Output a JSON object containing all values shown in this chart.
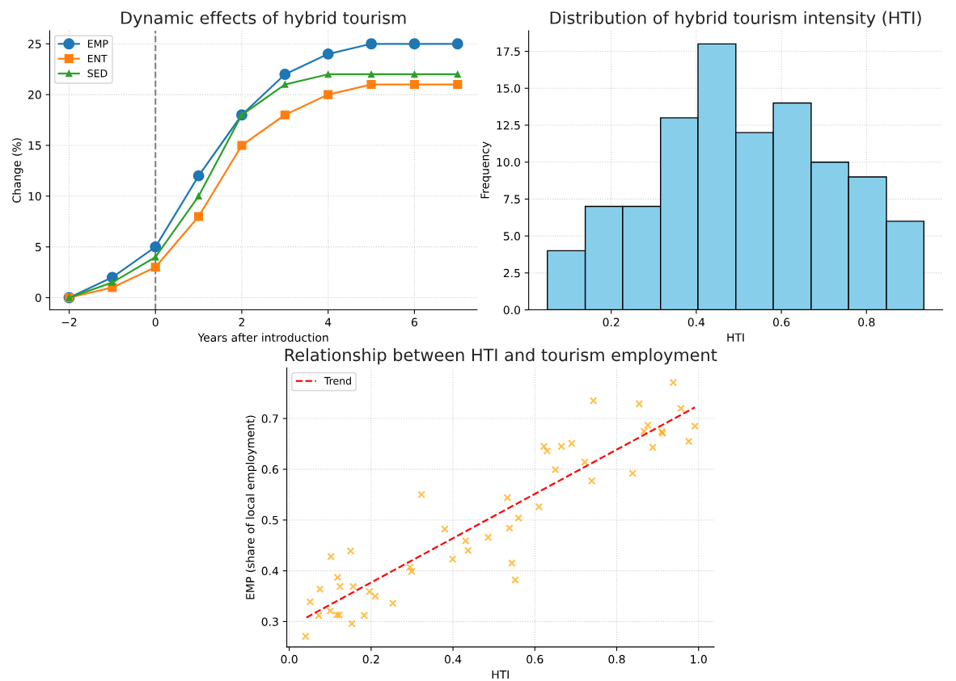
{
  "chart_data": [
    {
      "type": "line",
      "title": "Dynamic effects of hybrid tourism",
      "xlabel": "Years after introduction",
      "ylabel": "Change (%)",
      "x": [
        -2,
        -1,
        0,
        1,
        2,
        3,
        4,
        5,
        6,
        7
      ],
      "series": [
        {
          "name": "EMP",
          "color": "#1f77b4",
          "marker": "circle",
          "values": [
            0,
            2,
            5,
            12,
            18,
            22,
            24,
            25,
            25,
            25
          ]
        },
        {
          "name": "ENT",
          "color": "#ff7f0e",
          "marker": "square",
          "values": [
            0,
            1,
            3,
            8,
            15,
            18,
            20,
            21,
            21,
            21
          ]
        },
        {
          "name": "SED",
          "color": "#2ca02c",
          "marker": "triangle",
          "values": [
            0,
            1.5,
            4,
            10,
            18,
            21,
            22,
            22,
            22,
            22
          ]
        }
      ],
      "xlim": [
        -2.45,
        7.45
      ],
      "xticks": [
        {
          "value": -2,
          "label": "−2"
        },
        0,
        2,
        4,
        6
      ],
      "ylim": [
        -1.2,
        26.3
      ],
      "yticks": [
        0,
        5,
        10,
        15,
        20,
        25
      ],
      "ref_lines": [
        {
          "axis": "x",
          "value": 0,
          "color": "#808080",
          "line_style": "dashed"
        }
      ],
      "grid": true,
      "legend": "top left",
      "line_style": "solid"
    },
    {
      "type": "histogram",
      "title": "Distribution of hybrid tourism intensity (HTI)",
      "xlabel": "HTI",
      "ylabel": "Frequency",
      "bins": [
        0.05,
        0.139,
        0.227,
        0.316,
        0.404,
        0.493,
        0.581,
        0.67,
        0.758,
        0.847,
        0.935
      ],
      "values": [
        4,
        7,
        7,
        13,
        18,
        12,
        14,
        10,
        9,
        6
      ],
      "color": "#87ceeb",
      "xlim": [
        0.006,
        0.979
      ],
      "xticks": [
        0.2,
        0.4,
        0.6,
        0.8
      ],
      "ylim": [
        0,
        18.9
      ],
      "yticks": [
        {
          "value": 0,
          "label": "0.0"
        },
        2.5,
        {
          "value": 5,
          "label": "5.0"
        },
        7.5,
        {
          "value": 10,
          "label": "10.0"
        },
        12.5,
        {
          "value": 15,
          "label": "15.0"
        },
        17.5
      ],
      "grid": true
    },
    {
      "type": "scatter",
      "title": "Relationship between HTI and tourism employment",
      "xlabel": "HTI",
      "ylabel": "EMP (share of local employment)",
      "series": [
        {
          "type": "scatter",
          "color": "#ffa500",
          "marker": "cross",
          "x": [
            0.04,
            0.051,
            0.072,
            0.075,
            0.1,
            0.102,
            0.118,
            0.116,
            0.122,
            0.124,
            0.15,
            0.153,
            0.156,
            0.183,
            0.196,
            0.21,
            0.253,
            0.295,
            0.299,
            0.323,
            0.38,
            0.399,
            0.431,
            0.437,
            0.486,
            0.533,
            0.538,
            0.544,
            0.552,
            0.56,
            0.61,
            0.622,
            0.63,
            0.65,
            0.665,
            0.69,
            0.722,
            0.739,
            0.743,
            0.839,
            0.855,
            0.867,
            0.876,
            0.888,
            0.91,
            0.912,
            0.938,
            0.957,
            0.976,
            0.991
          ],
          "values": [
            0.271,
            0.339,
            0.312,
            0.364,
            0.321,
            0.428,
            0.387,
            0.313,
            0.313,
            0.369,
            0.439,
            0.296,
            0.369,
            0.312,
            0.359,
            0.35,
            0.336,
            0.407,
            0.399,
            0.55,
            0.482,
            0.423,
            0.459,
            0.44,
            0.466,
            0.544,
            0.484,
            0.415,
            0.382,
            0.504,
            0.526,
            0.645,
            0.636,
            0.599,
            0.645,
            0.651,
            0.614,
            0.577,
            0.735,
            0.592,
            0.729,
            0.675,
            0.687,
            0.643,
            0.674,
            0.671,
            0.771,
            0.72,
            0.655,
            0.685
          ]
        },
        {
          "type": "line",
          "name": "Trend",
          "color": "#ff0000",
          "line_style": "dashed",
          "marker": "none",
          "x": [
            0.042,
            0.991
          ],
          "values": [
            0.308,
            0.722
          ]
        }
      ],
      "xlim": [
        -0.006,
        1.038
      ],
      "xticks": [
        {
          "value": 0,
          "label": "0.0"
        },
        0.2,
        0.4,
        0.6,
        0.8,
        {
          "value": 1,
          "label": "1.0"
        }
      ],
      "ylim": [
        0.25,
        0.8
      ],
      "yticks": [
        0.3,
        0.4,
        0.5,
        0.6,
        0.7
      ],
      "grid": true,
      "legend": "top left"
    }
  ]
}
